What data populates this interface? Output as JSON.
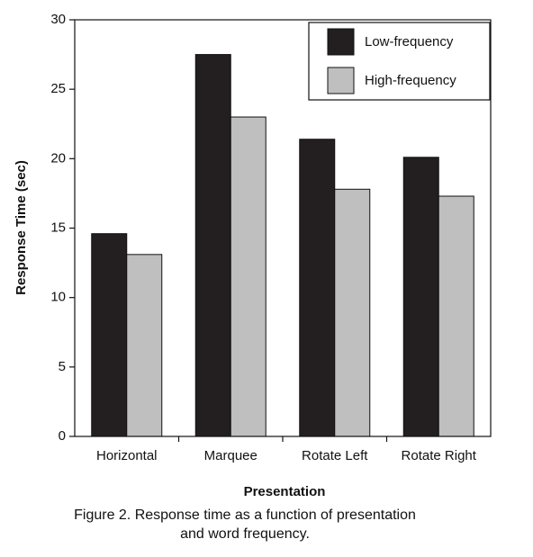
{
  "chart_data": {
    "type": "bar",
    "categories": [
      "Horizontal",
      "Marquee",
      "Rotate Left",
      "Rotate Right"
    ],
    "series": [
      {
        "name": "Low-frequency",
        "color": "#231f20",
        "values": [
          14.6,
          27.5,
          21.4,
          20.1
        ]
      },
      {
        "name": "High-frequency",
        "color": "#bfbfbf",
        "values": [
          13.1,
          23.0,
          17.8,
          17.3
        ]
      }
    ],
    "ylim": [
      0,
      30
    ],
    "yticks": [
      0,
      5,
      10,
      15,
      20,
      25,
      30
    ],
    "x_label": "Presentation",
    "y_label": "Response Time (sec)",
    "legend": "top-right",
    "caption": [
      "Figure 2. Response time as a function of presentation",
      "and word frequency."
    ]
  }
}
